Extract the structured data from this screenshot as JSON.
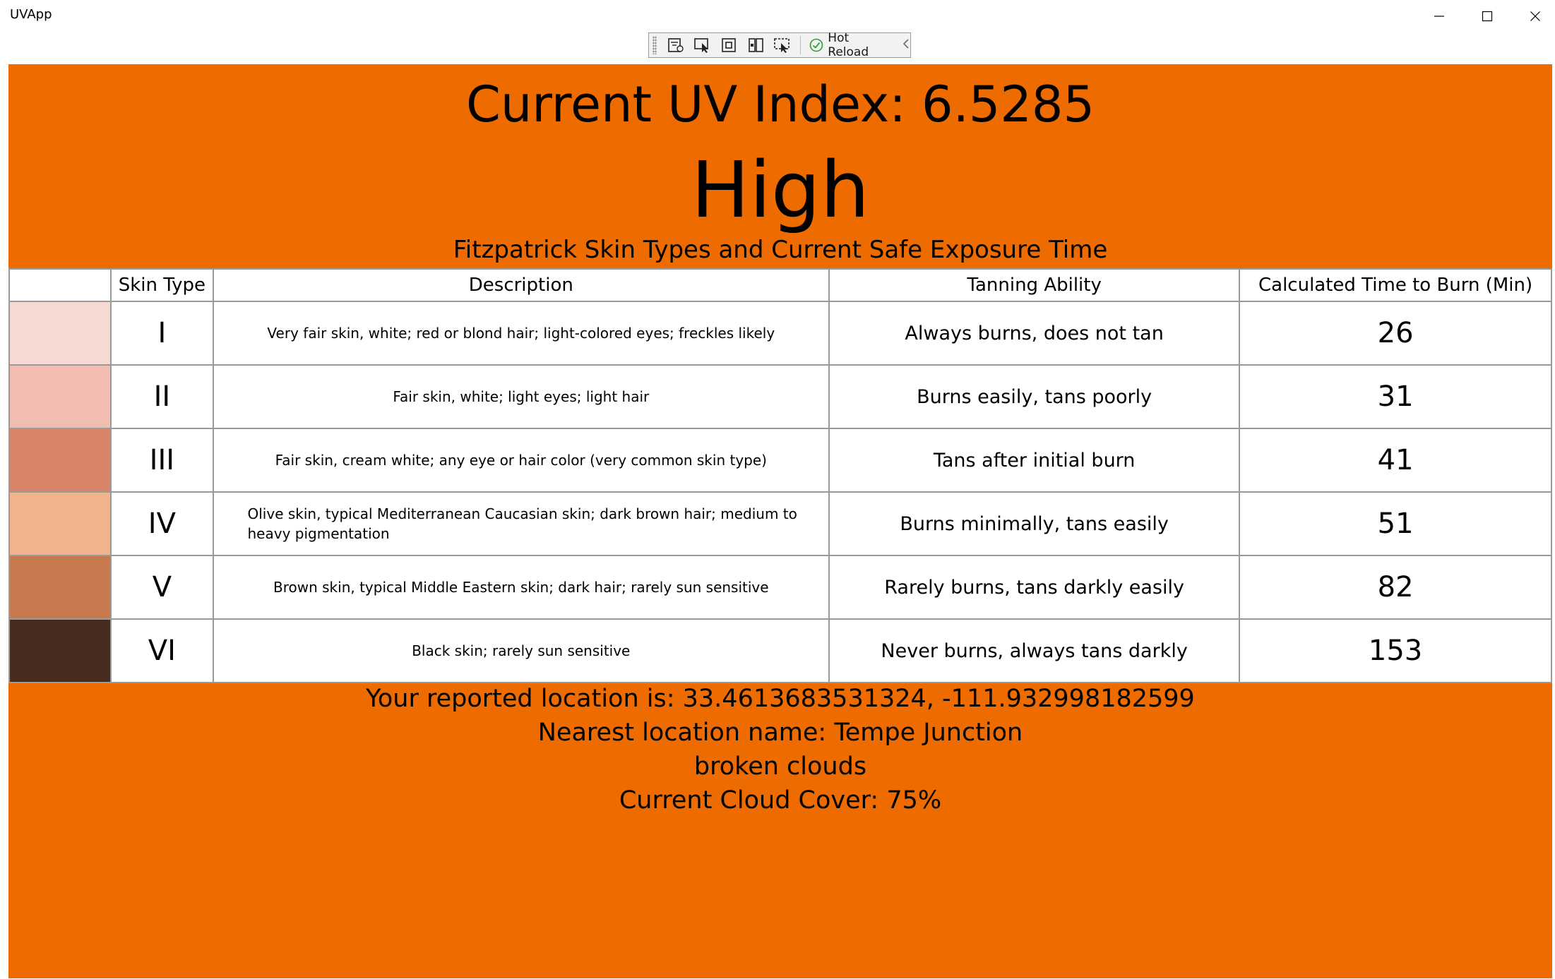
{
  "window": {
    "title": "UVApp"
  },
  "devbar": {
    "hot_reload_label": "Hot Reload",
    "tools": [
      "live-visual-tree-icon",
      "select-element-icon",
      "display-layout-adorners-icon",
      "track-focus-icon",
      "preview-selection-icon"
    ]
  },
  "uv": {
    "title": "Current UV Index: 6.5285",
    "level": "High",
    "color": "#ee6b00"
  },
  "table": {
    "caption": "Fitzpatrick Skin Types and Current Safe Exposure Time",
    "headers": [
      "",
      "Skin Type",
      "Description",
      "Tanning Ability",
      "Calculated Time to Burn (Min)"
    ],
    "rows": [
      {
        "swatch": "#f6d9d3",
        "type": "I",
        "description": "Very fair skin, white; red or blond hair; light-colored eyes; freckles likely",
        "tanning": "Always burns, does not tan",
        "burn": "26"
      },
      {
        "swatch": "#f0bdb0",
        "type": "II",
        "description": "Fair skin, white; light eyes; light hair",
        "tanning": "Burns easily, tans poorly",
        "burn": "31"
      },
      {
        "swatch": "#d8836a",
        "type": "III",
        "description": "Fair skin, cream white; any eye or hair color (very common skin type)",
        "tanning": "Tans after initial burn",
        "burn": "41"
      },
      {
        "swatch": "#efb48b",
        "type": "IV",
        "description": "Olive skin, typical Mediterranean Caucasian skin; dark brown hair; medium to heavy pigmentation",
        "tanning": "Burns minimally, tans easily",
        "burn": "51"
      },
      {
        "swatch": "#c67a4d",
        "type": "V",
        "description": "Brown skin, typical Middle Eastern skin; dark hair; rarely sun sensitive",
        "tanning": "Rarely burns, tans darkly easily",
        "burn": "82"
      },
      {
        "swatch": "#472b21",
        "type": "VI",
        "description": "Black skin; rarely sun sensitive",
        "tanning": "Never burns, always tans darkly",
        "burn": "153"
      }
    ]
  },
  "info": {
    "location": "Your reported location is: 33.4613683531324, -111.932998182599",
    "nearest": "Nearest location name: Tempe Junction",
    "weather": "broken clouds",
    "cloud_cover": "Current Cloud Cover: 75%"
  }
}
